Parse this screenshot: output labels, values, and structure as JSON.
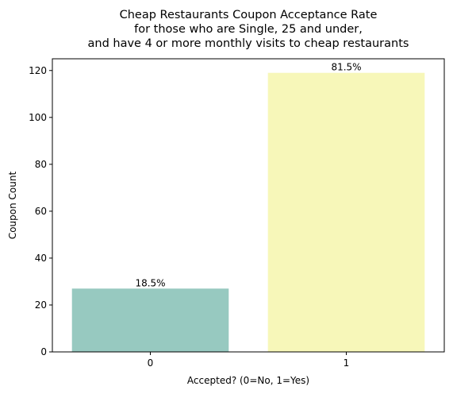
{
  "chart_data": {
    "type": "bar",
    "title_lines": [
      "Cheap Restaurants Coupon Acceptance Rate",
      "for those who are Single, 25 and under,",
      "and have 4 or more monthly visits to cheap restaurants"
    ],
    "xlabel": "Accepted? (0=No, 1=Yes)",
    "ylabel": "Coupon Count",
    "categories": [
      "0",
      "1"
    ],
    "values": [
      27,
      119
    ],
    "data_labels": [
      "18.5%",
      "81.5%"
    ],
    "colors": [
      "#97c9c0",
      "#f7f7b9"
    ],
    "ylim": [
      0,
      125
    ],
    "yticks": [
      0,
      20,
      40,
      60,
      80,
      100,
      120
    ],
    "grid": false
  }
}
